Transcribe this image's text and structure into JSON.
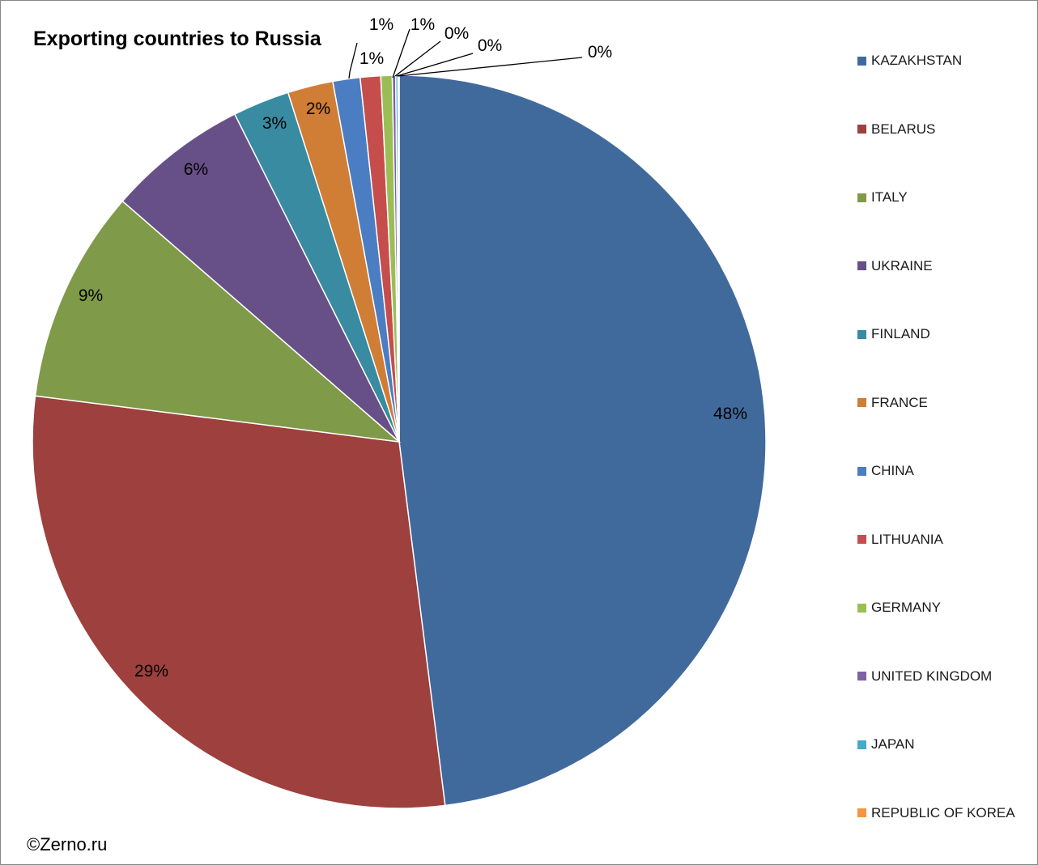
{
  "chart_data": {
    "type": "pie",
    "title": "Exporting countries to Russia",
    "legend_position": "right",
    "slices": [
      {
        "name": "KAZAKHSTAN",
        "value": 48.0,
        "label": "48%",
        "color": "#416A9C"
      },
      {
        "name": "BELARUS",
        "value": 29.0,
        "label": "29%",
        "color": "#9D403E"
      },
      {
        "name": "ITALY",
        "value": 9.4,
        "label": "9%",
        "color": "#7F9A48"
      },
      {
        "name": "UKRAINE",
        "value": 6.2,
        "label": "6%",
        "color": "#675087"
      },
      {
        "name": "FINLAND",
        "value": 2.5,
        "label": "3%",
        "color": "#388BA1"
      },
      {
        "name": "FRANCE",
        "value": 2.0,
        "label": "2%",
        "color": "#D07D36"
      },
      {
        "name": "CHINA",
        "value": 1.2,
        "label": "1%",
        "color": "#4B7DC2"
      },
      {
        "name": "LITHUANIA",
        "value": 0.9,
        "label": "1%",
        "color": "#C54E4C"
      },
      {
        "name": "GERMANY",
        "value": 0.5,
        "label": "1%",
        "color": "#9ABE55"
      },
      {
        "name": "UNITED KINGDOM",
        "value": 0.15,
        "label": "0%",
        "color": "#7E62A1"
      },
      {
        "name": "JAPAN",
        "value": 0.1,
        "label": "0%",
        "color": "#46AACB"
      },
      {
        "name": "REPUBLIC OF KOREA",
        "value": 0.05,
        "label": "0%",
        "color": "#F39544"
      }
    ]
  },
  "footer": {
    "copyright": "©Zerno.ru"
  }
}
